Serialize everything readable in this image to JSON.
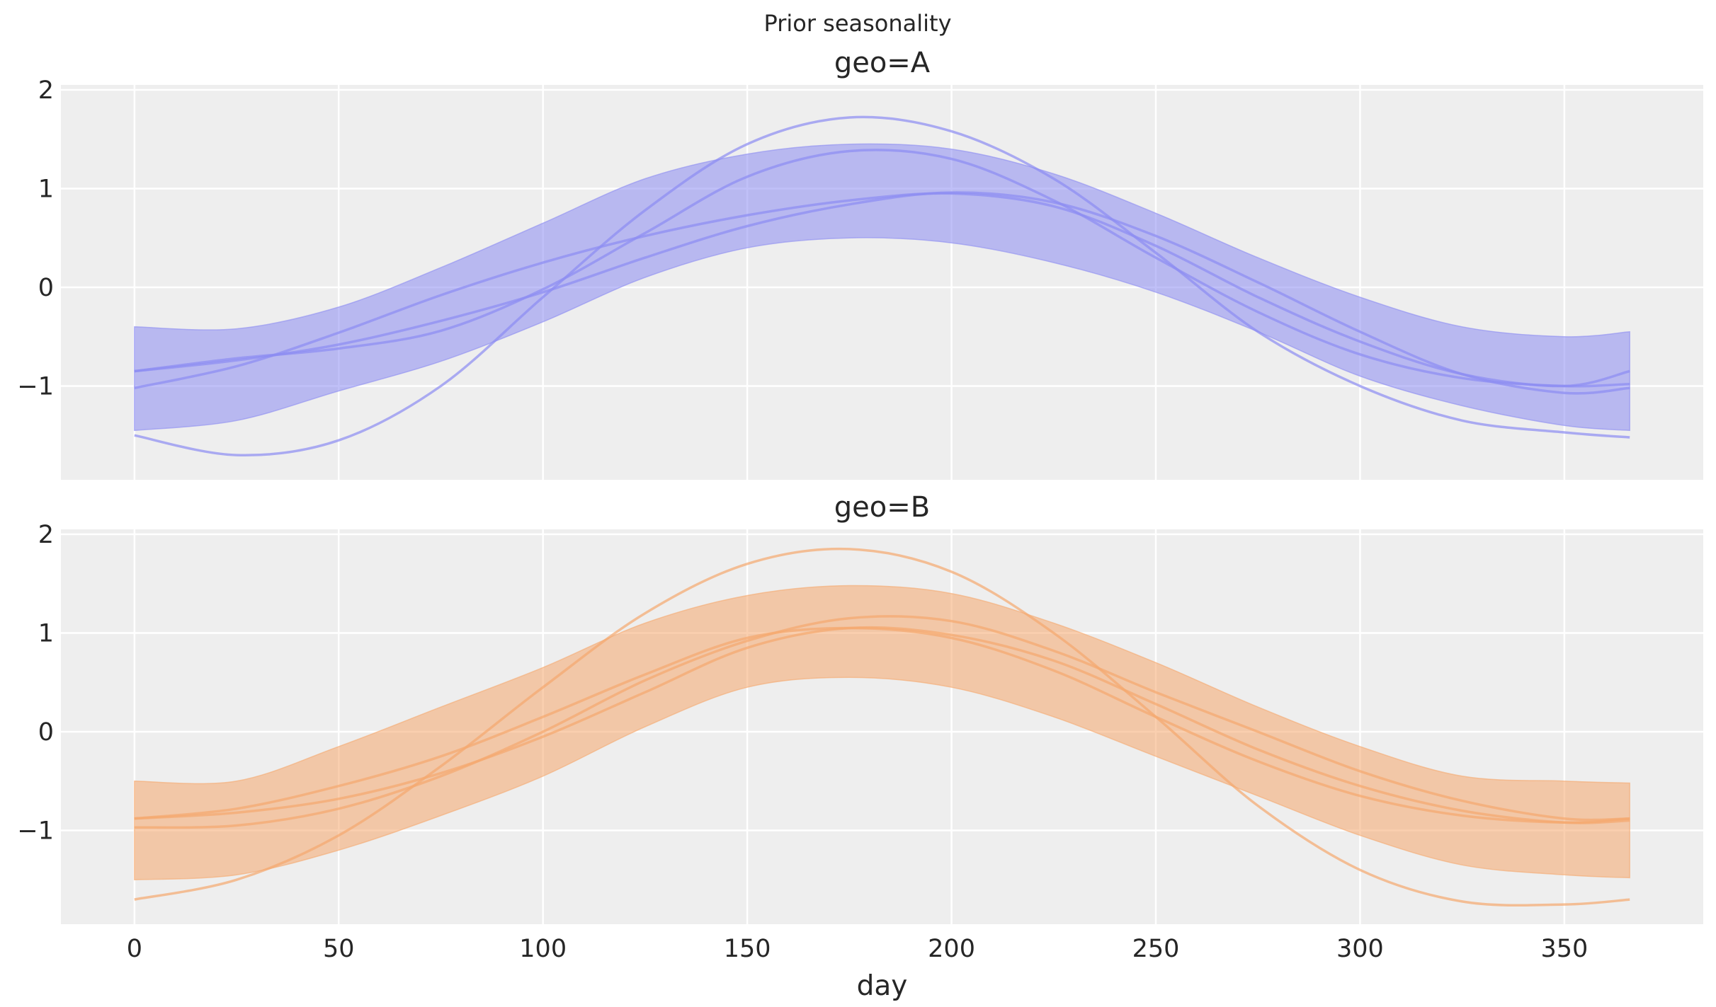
{
  "figure": {
    "suptitle": "Prior seasonality"
  },
  "chart_data": [
    {
      "type": "area",
      "title": "geo=A",
      "xlabel": "",
      "ylabel": "",
      "xlim": [
        -18,
        384
      ],
      "ylim": [
        -1.95,
        2.05
      ],
      "xticks": [
        0,
        50,
        100,
        150,
        200,
        250,
        300,
        350
      ],
      "xtick_labels": [
        "",
        "",
        "",
        "",
        "",
        "",
        "",
        ""
      ],
      "yticks": [
        -1,
        0,
        1,
        2
      ],
      "ytick_labels": [
        "−1",
        "0",
        "1",
        "2"
      ],
      "grid": true,
      "color": "#8c8cf2",
      "band": {
        "x": [
          0,
          25,
          50,
          75,
          100,
          125,
          150,
          175,
          200,
          225,
          250,
          275,
          300,
          325,
          350,
          366
        ],
        "upper": [
          -0.4,
          -0.42,
          -0.2,
          0.2,
          0.65,
          1.1,
          1.35,
          1.45,
          1.4,
          1.15,
          0.75,
          0.3,
          -0.1,
          -0.4,
          -0.5,
          -0.45
        ],
        "lower": [
          -1.45,
          -1.35,
          -1.05,
          -0.75,
          -0.35,
          0.1,
          0.4,
          0.5,
          0.45,
          0.25,
          -0.05,
          -0.45,
          -0.9,
          -1.2,
          -1.4,
          -1.45
        ]
      },
      "series": [
        {
          "x": [
            0,
            25,
            50,
            75,
            100,
            125,
            150,
            175,
            200,
            225,
            250,
            275,
            300,
            325,
            350,
            366
          ],
          "values": [
            -0.85,
            -0.74,
            -0.58,
            -0.34,
            -0.05,
            0.3,
            0.62,
            0.84,
            0.96,
            0.86,
            0.52,
            0.05,
            -0.45,
            -0.88,
            -1.07,
            -1.02
          ]
        },
        {
          "x": [
            0,
            25,
            50,
            75,
            100,
            125,
            150,
            175,
            200,
            225,
            250,
            275,
            300,
            325,
            350,
            366
          ],
          "values": [
            -1.02,
            -0.8,
            -0.46,
            -0.08,
            0.25,
            0.52,
            0.73,
            0.88,
            0.95,
            0.82,
            0.42,
            -0.1,
            -0.55,
            -0.88,
            -1.0,
            -0.85
          ]
        },
        {
          "x": [
            0,
            25,
            50,
            75,
            100,
            125,
            150,
            175,
            200,
            225,
            250,
            275,
            300,
            325,
            350,
            366
          ],
          "values": [
            -1.5,
            -1.7,
            -1.55,
            -1.0,
            -0.1,
            0.78,
            1.45,
            1.72,
            1.58,
            1.1,
            0.35,
            -0.45,
            -1.0,
            -1.35,
            -1.47,
            -1.52
          ]
        },
        {
          "x": [
            0,
            25,
            50,
            75,
            100,
            125,
            150,
            175,
            200,
            225,
            250,
            275,
            300,
            325,
            350,
            366
          ],
          "values": [
            -0.85,
            -0.72,
            -0.62,
            -0.44,
            -0.02,
            0.55,
            1.12,
            1.38,
            1.3,
            0.88,
            0.3,
            -0.25,
            -0.68,
            -0.92,
            -1.0,
            -0.98
          ]
        }
      ]
    },
    {
      "type": "area",
      "title": "geo=B",
      "xlabel": "day",
      "ylabel": "",
      "xlim": [
        -18,
        384
      ],
      "ylim": [
        -1.95,
        2.05
      ],
      "xticks": [
        0,
        50,
        100,
        150,
        200,
        250,
        300,
        350
      ],
      "xtick_labels": [
        "0",
        "50",
        "100",
        "150",
        "200",
        "250",
        "300",
        "350"
      ],
      "yticks": [
        -1,
        0,
        1,
        2
      ],
      "ytick_labels": [
        "−1",
        "0",
        "1",
        "2"
      ],
      "grid": true,
      "color": "#f5a86e",
      "band": {
        "x": [
          0,
          25,
          50,
          75,
          100,
          125,
          150,
          175,
          200,
          225,
          250,
          275,
          300,
          325,
          350,
          366
        ],
        "upper": [
          -0.5,
          -0.5,
          -0.15,
          0.25,
          0.65,
          1.1,
          1.38,
          1.48,
          1.4,
          1.1,
          0.7,
          0.25,
          -0.15,
          -0.45,
          -0.5,
          -0.52
        ],
        "lower": [
          -1.5,
          -1.45,
          -1.2,
          -0.85,
          -0.45,
          0.05,
          0.45,
          0.55,
          0.45,
          0.15,
          -0.25,
          -0.65,
          -1.05,
          -1.35,
          -1.45,
          -1.48
        ]
      },
      "series": [
        {
          "x": [
            0,
            25,
            50,
            75,
            100,
            125,
            150,
            175,
            200,
            225,
            250,
            275,
            300,
            325,
            350,
            366
          ],
          "values": [
            -0.88,
            -0.82,
            -0.68,
            -0.42,
            -0.05,
            0.4,
            0.85,
            1.05,
            0.98,
            0.72,
            0.28,
            -0.18,
            -0.55,
            -0.8,
            -0.92,
            -0.9
          ]
        },
        {
          "x": [
            0,
            25,
            50,
            75,
            100,
            125,
            150,
            175,
            200,
            225,
            250,
            275,
            300,
            325,
            350,
            366
          ],
          "values": [
            -0.97,
            -0.95,
            -0.78,
            -0.45,
            0.0,
            0.52,
            0.92,
            1.15,
            1.12,
            0.82,
            0.4,
            0.0,
            -0.4,
            -0.7,
            -0.88,
            -0.88
          ]
        },
        {
          "x": [
            0,
            25,
            50,
            75,
            100,
            125,
            150,
            175,
            200,
            225,
            250,
            275,
            300,
            325,
            350,
            366
          ],
          "values": [
            -1.7,
            -1.5,
            -1.05,
            -0.35,
            0.45,
            1.2,
            1.7,
            1.85,
            1.62,
            1.0,
            0.15,
            -0.75,
            -1.4,
            -1.72,
            -1.75,
            -1.7
          ]
        },
        {
          "x": [
            0,
            25,
            50,
            75,
            100,
            125,
            150,
            175,
            200,
            225,
            250,
            275,
            300,
            325,
            350,
            366
          ],
          "values": [
            -0.88,
            -0.78,
            -0.55,
            -0.25,
            0.15,
            0.58,
            0.95,
            1.05,
            0.95,
            0.62,
            0.15,
            -0.3,
            -0.65,
            -0.85,
            -0.92,
            -0.88
          ]
        }
      ]
    }
  ]
}
